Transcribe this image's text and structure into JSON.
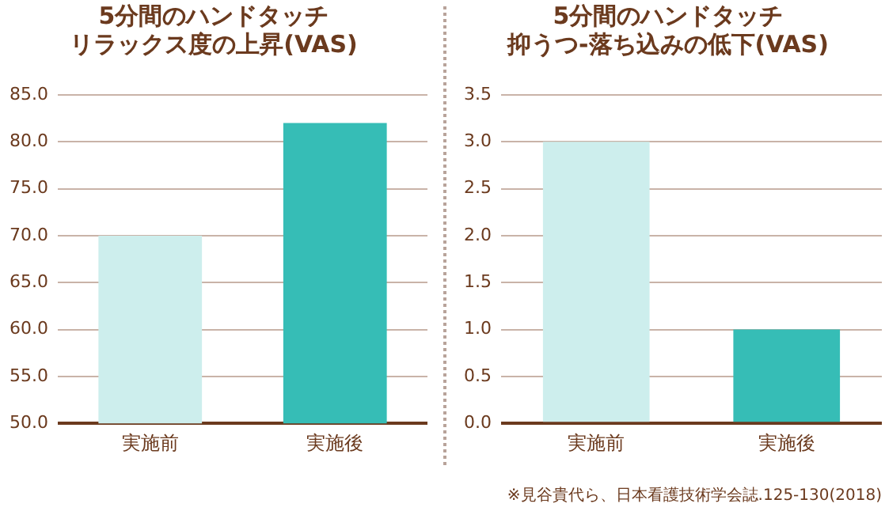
{
  "chart_data": [
    {
      "type": "bar",
      "title": "5分間のハンドタッチ",
      "subtitle": "リラックス度の上昇(VAS)",
      "categories": [
        "実施前",
        "実施後"
      ],
      "values": [
        70,
        82
      ],
      "colors": [
        "#cdeeed",
        "#36bdb6"
      ],
      "ylim": [
        50,
        85
      ],
      "yticks": [
        {
          "value": 50,
          "label": "50.0"
        },
        {
          "value": 55,
          "label": "55.0"
        },
        {
          "value": 60,
          "label": "60.0"
        },
        {
          "value": 65,
          "label": "65.0"
        },
        {
          "value": 70,
          "label": "70.0"
        },
        {
          "value": 75,
          "label": "75.0"
        },
        {
          "value": 80,
          "label": "80.0"
        },
        {
          "value": 85,
          "label": "85.0"
        }
      ],
      "grid": "y",
      "legend": false
    },
    {
      "type": "bar",
      "title": "5分間のハンドタッチ",
      "subtitle": "抑うつ-落ち込みの低下(VAS)",
      "categories": [
        "実施前",
        "実施後"
      ],
      "values": [
        3,
        1
      ],
      "colors": [
        "#cdeeed",
        "#36bdb6"
      ],
      "ylim": [
        0,
        3.5
      ],
      "yticks": [
        {
          "value": 0,
          "label": "0.0"
        },
        {
          "value": 0.5,
          "label": "0.5"
        },
        {
          "value": 1,
          "label": "1.0"
        },
        {
          "value": 1.5,
          "label": "1.5"
        },
        {
          "value": 2,
          "label": "2.0"
        },
        {
          "value": 2.5,
          "label": "2.5"
        },
        {
          "value": 3,
          "label": "3.0"
        },
        {
          "value": 3.5,
          "label": "3.5"
        }
      ],
      "grid": "y",
      "legend": false,
      "annotations": [
        "※見谷貴代ら、日本看護技術学会誌.125-130(2018)"
      ]
    }
  ]
}
